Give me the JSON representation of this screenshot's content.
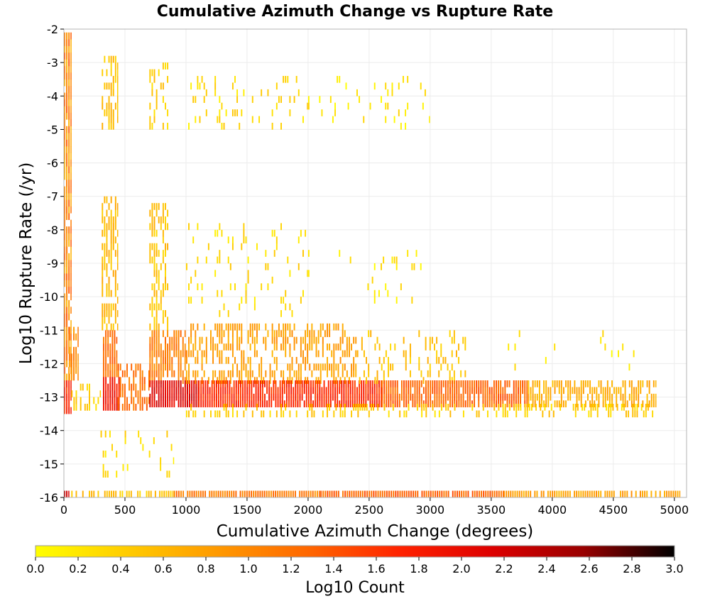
{
  "chart_data": {
    "type": "heatmap",
    "title": "Cumulative Azimuth Change vs Rupture Rate",
    "xlabel": "Cumulative Azimuth Change (degrees)",
    "ylabel": "Log10 Rupture Rate (/yr)",
    "xlim": [
      0,
      5100
    ],
    "ylim": [
      -16,
      -2
    ],
    "x_ticks": [
      "0",
      "500",
      "1000",
      "1500",
      "2000",
      "2500",
      "3000",
      "3500",
      "4000",
      "4500",
      "5000"
    ],
    "y_ticks": [
      "-2",
      "-3",
      "-4",
      "-5",
      "-6",
      "-7",
      "-8",
      "-9",
      "-10",
      "-11",
      "-12",
      "-13",
      "-14",
      "-15",
      "-16"
    ],
    "grid": true,
    "bin_width_degrees": 18,
    "bin_height_log10": 0.2,
    "colorbar": {
      "label": "Log10 Count",
      "range": [
        0,
        3
      ],
      "ticks": [
        "0.0",
        "0.2",
        "0.4",
        "0.6",
        "0.8",
        "1.0",
        "1.2",
        "1.4",
        "1.6",
        "1.8",
        "2.0",
        "2.2",
        "2.4",
        "2.6",
        "2.8",
        "3.0"
      ],
      "colors": [
        "#ffff00",
        "#ffcc00",
        "#ff9900",
        "#ff6600",
        "#ff2200",
        "#dd0000",
        "#990000",
        "#000000"
      ]
    },
    "cells": [
      {
        "x": [
          0,
          60
        ],
        "y": [
          -12.5,
          -2.2
        ],
        "v": 1.0,
        "step": 0.4,
        "p": 0.9
      },
      {
        "x": [
          0,
          60
        ],
        "y": [
          -13.5,
          -12.5
        ],
        "v": 1.7,
        "step": 0.2,
        "p": 0.95
      },
      {
        "x": [
          0,
          40
        ],
        "y": [
          -16.0,
          -15.8
        ],
        "v": 2.2,
        "step": 0.2,
        "p": 1.0
      },
      {
        "x": [
          40,
          120
        ],
        "y": [
          -12.5,
          -11.0
        ],
        "v": 1.0,
        "step": 0.2,
        "p": 0.6
      },
      {
        "x": [
          60,
          300
        ],
        "y": [
          -13.4,
          -12.6
        ],
        "v": 0.4,
        "step": 0.2,
        "p": 0.4
      },
      {
        "x": [
          310,
          440
        ],
        "y": [
          -5.0,
          -2.8
        ],
        "v": 0.5,
        "step": 0.2,
        "p": 0.55
      },
      {
        "x": [
          310,
          440
        ],
        "y": [
          -11.0,
          -7.0
        ],
        "v": 0.6,
        "step": 0.2,
        "p": 0.6
      },
      {
        "x": [
          320,
          440
        ],
        "y": [
          -12.4,
          -11.0
        ],
        "v": 1.2,
        "step": 0.2,
        "p": 0.85
      },
      {
        "x": [
          320,
          460
        ],
        "y": [
          -13.4,
          -12.4
        ],
        "v": 1.9,
        "step": 0.2,
        "p": 0.95
      },
      {
        "x": [
          440,
          700
        ],
        "y": [
          -13.4,
          -12.0
        ],
        "v": 1.2,
        "step": 0.2,
        "p": 0.6
      },
      {
        "x": [
          700,
          860
        ],
        "y": [
          -5.0,
          -3.0
        ],
        "v": 0.4,
        "step": 0.2,
        "p": 0.35
      },
      {
        "x": [
          700,
          860
        ],
        "y": [
          -11.0,
          -7.2
        ],
        "v": 0.5,
        "step": 0.2,
        "p": 0.45
      },
      {
        "x": [
          700,
          1000
        ],
        "y": [
          -12.6,
          -11.0
        ],
        "v": 1.1,
        "step": 0.2,
        "p": 0.75
      },
      {
        "x": [
          700,
          1100
        ],
        "y": [
          -13.3,
          -12.6
        ],
        "v": 2.1,
        "step": 0.2,
        "p": 0.95
      },
      {
        "x": [
          1000,
          2000
        ],
        "y": [
          -5.0,
          -3.4
        ],
        "v": 0.3,
        "step": 0.2,
        "p": 0.12
      },
      {
        "x": [
          1000,
          2000
        ],
        "y": [
          -10.6,
          -7.8
        ],
        "v": 0.3,
        "step": 0.2,
        "p": 0.1
      },
      {
        "x": [
          1000,
          2400
        ],
        "y": [
          -12.6,
          -10.8
        ],
        "v": 0.8,
        "step": 0.2,
        "p": 0.45
      },
      {
        "x": [
          1100,
          2600
        ],
        "y": [
          -13.3,
          -12.6
        ],
        "v": 1.7,
        "step": 0.2,
        "p": 0.95
      },
      {
        "x": [
          2000,
          3000
        ],
        "y": [
          -5.0,
          -3.4
        ],
        "v": 0.2,
        "step": 0.2,
        "p": 0.07
      },
      {
        "x": [
          2000,
          3000
        ],
        "y": [
          -10.2,
          -8.6
        ],
        "v": 0.2,
        "step": 0.2,
        "p": 0.05
      },
      {
        "x": [
          2400,
          3300
        ],
        "y": [
          -12.6,
          -11.0
        ],
        "v": 0.5,
        "step": 0.2,
        "p": 0.2
      },
      {
        "x": [
          2600,
          3800
        ],
        "y": [
          -13.3,
          -12.6
        ],
        "v": 1.3,
        "step": 0.2,
        "p": 0.9
      },
      {
        "x": [
          3800,
          4850
        ],
        "y": [
          -13.3,
          -12.6
        ],
        "v": 0.7,
        "step": 0.2,
        "p": 0.65
      },
      {
        "x": [
          3600,
          4700
        ],
        "y": [
          -12.2,
          -11.0
        ],
        "v": 0.2,
        "step": 0.2,
        "p": 0.04
      },
      {
        "x": [
          1000,
          4850
        ],
        "y": [
          -13.6,
          -13.3
        ],
        "v": 0.4,
        "step": 0.2,
        "p": 0.35
      },
      {
        "x": [
          300,
          900
        ],
        "y": [
          -15.4,
          -14.0
        ],
        "v": 0.3,
        "step": 0.2,
        "p": 0.12
      },
      {
        "x": [
          60,
          900
        ],
        "y": [
          -16.0,
          -15.8
        ],
        "v": 0.5,
        "step": 0.2,
        "p": 0.6
      },
      {
        "x": [
          900,
          2100
        ],
        "y": [
          -16.0,
          -15.8
        ],
        "v": 1.1,
        "step": 0.2,
        "p": 0.95
      },
      {
        "x": [
          2100,
          3600
        ],
        "y": [
          -16.0,
          -15.8
        ],
        "v": 1.3,
        "step": 0.2,
        "p": 0.95
      },
      {
        "x": [
          3600,
          5050
        ],
        "y": [
          -16.0,
          -15.8
        ],
        "v": 0.8,
        "step": 0.2,
        "p": 0.85
      }
    ]
  }
}
